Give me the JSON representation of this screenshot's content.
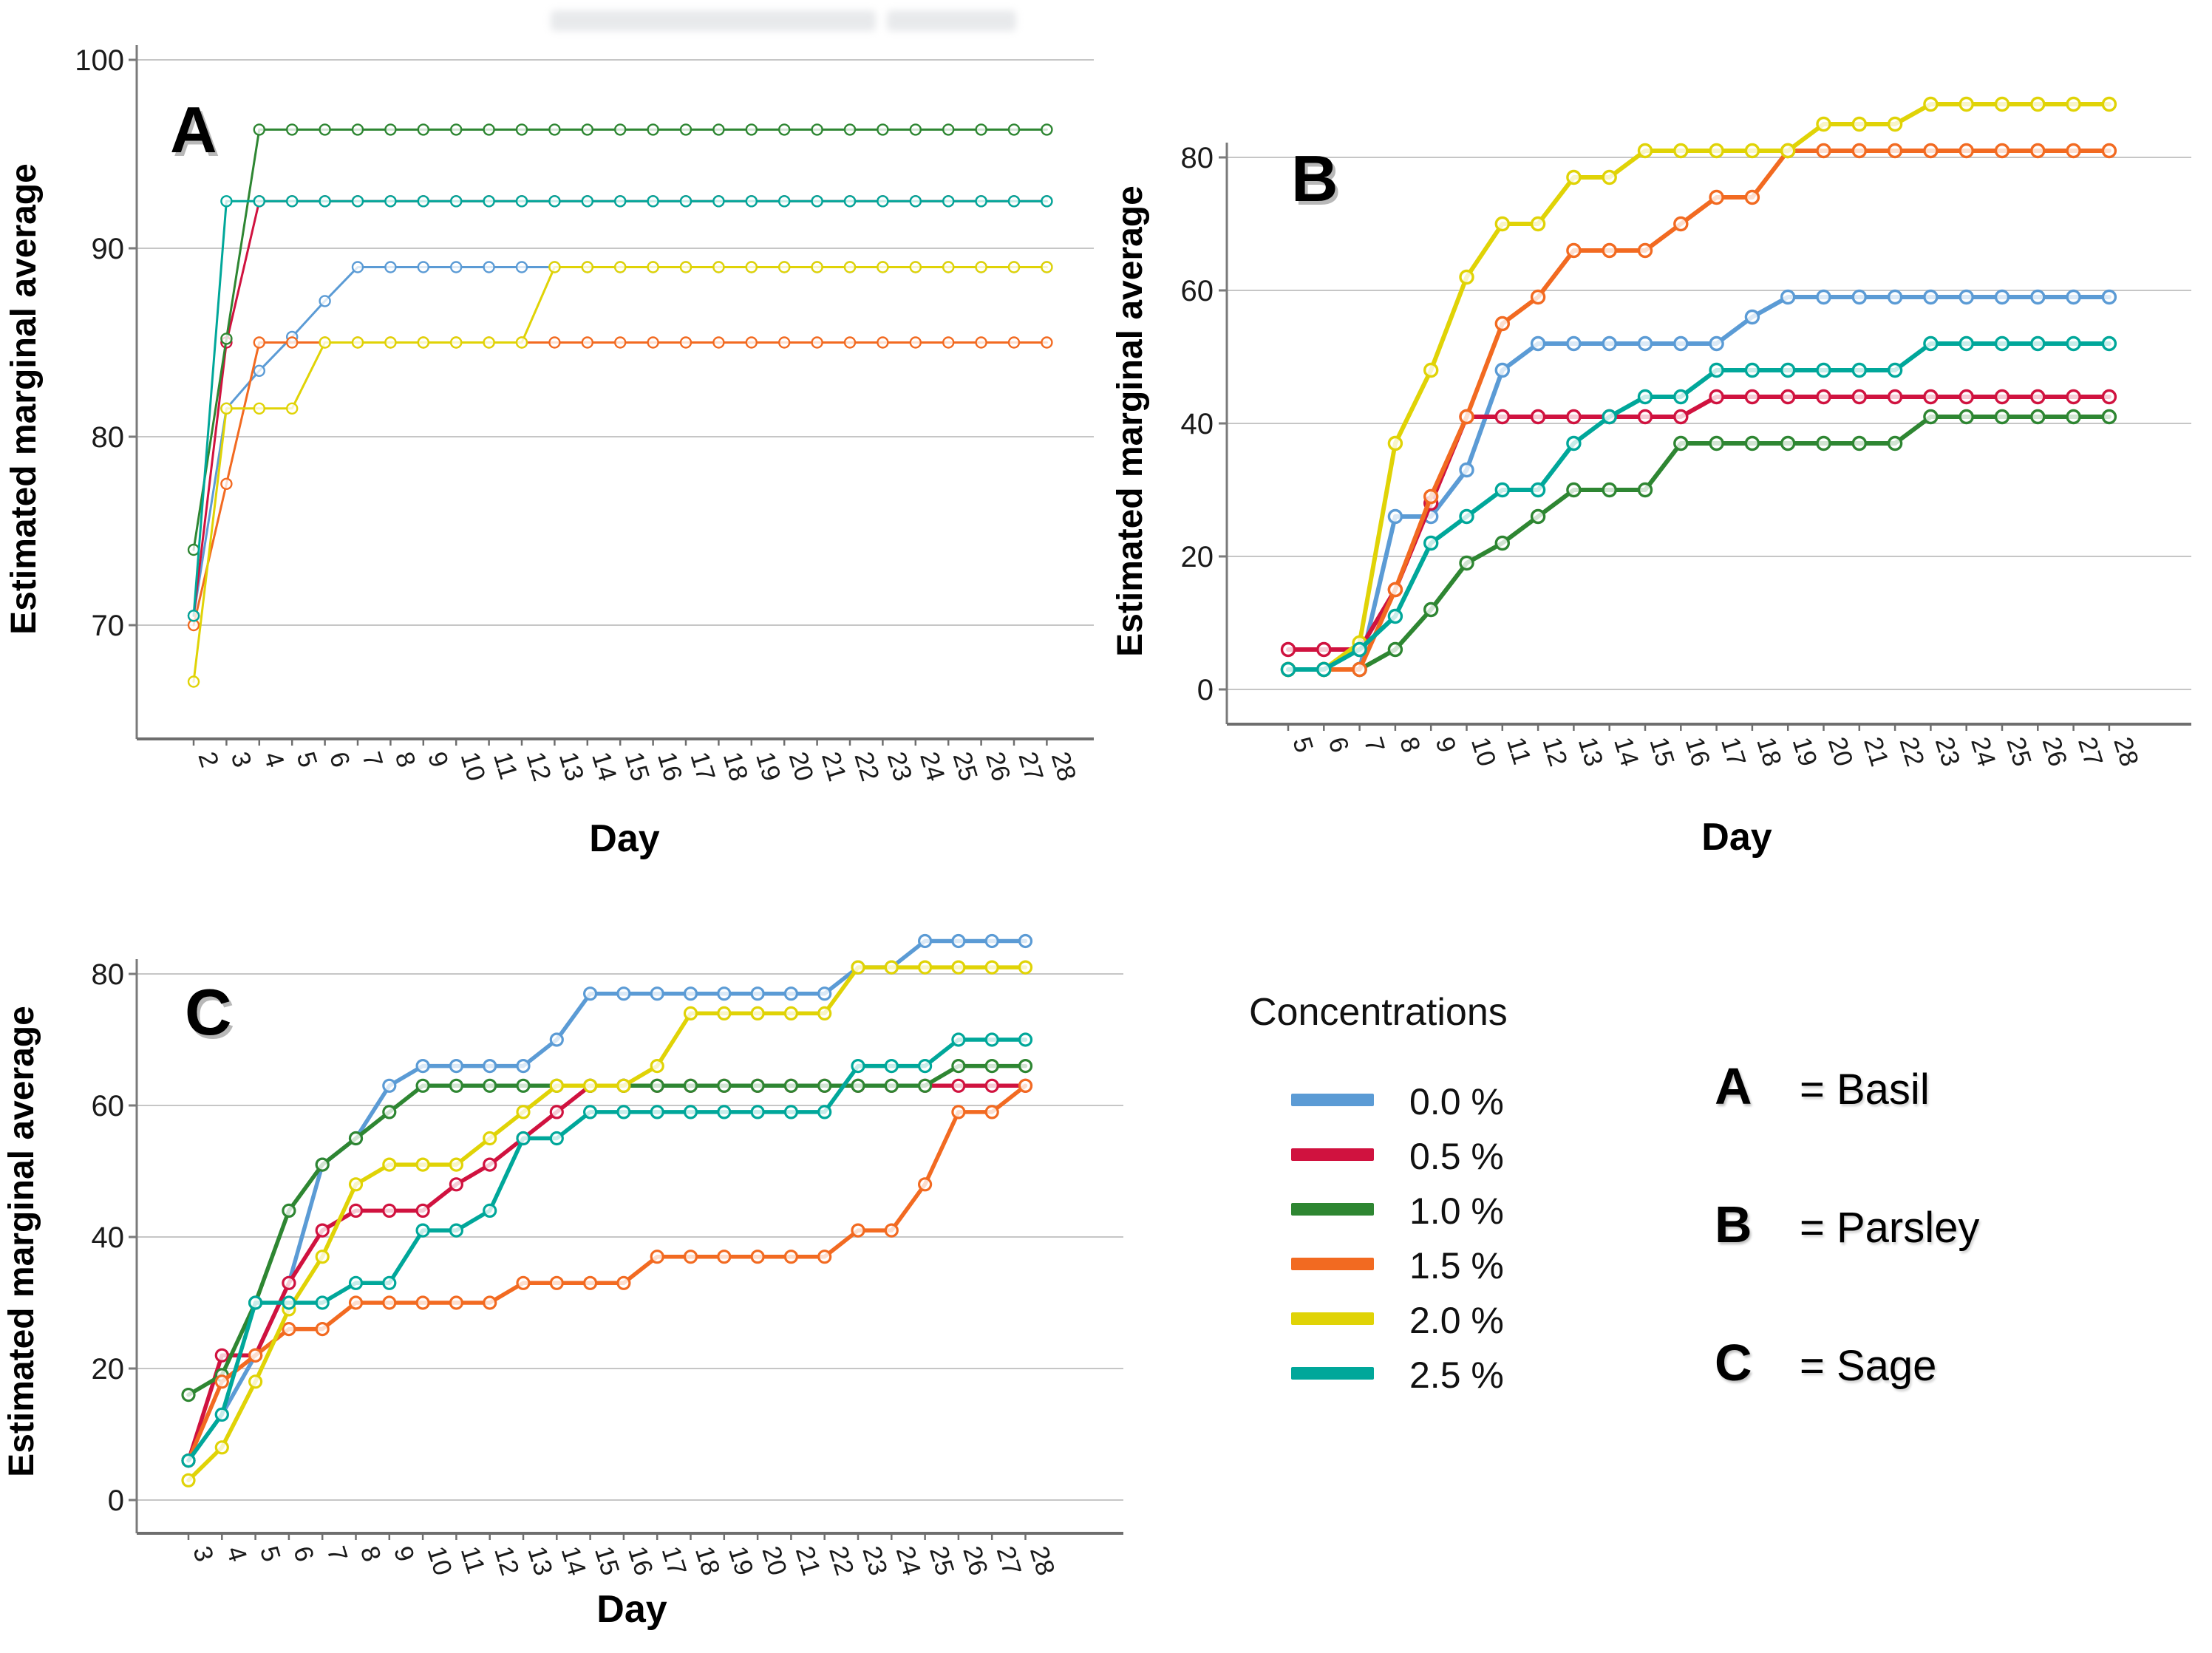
{
  "legend": {
    "title": "Concentrations",
    "items": [
      {
        "label": "0.0 %",
        "color": "#5b9bd5"
      },
      {
        "label": "0.5 %",
        "color": "#d0123f"
      },
      {
        "label": "1.0 %",
        "color": "#2e8632"
      },
      {
        "label": "1.5 %",
        "color": "#f26a21"
      },
      {
        "label": "2.0 %",
        "color": "#e0d306"
      },
      {
        "label": "2.5 %",
        "color": "#00a79a"
      }
    ]
  },
  "key": {
    "items": [
      {
        "letter": "A",
        "label": "= Basil"
      },
      {
        "letter": "B",
        "label": "= Parsley"
      },
      {
        "letter": "C",
        "label": "= Sage"
      }
    ]
  },
  "chart_data": [
    {
      "id": "A",
      "type": "line",
      "panel_label": "A",
      "xlabel": "Day",
      "ylabel": "Estimated marginal average",
      "x": [
        2,
        3,
        4,
        5,
        6,
        7,
        8,
        9,
        10,
        11,
        12,
        13,
        14,
        15,
        16,
        17,
        18,
        19,
        20,
        21,
        22,
        23,
        24,
        25,
        26,
        27,
        28
      ],
      "y_ticks": [
        100,
        90,
        80,
        70
      ],
      "ylim": [
        63.5,
        101.5
      ],
      "grid": true,
      "legend_position": "none",
      "series": [
        {
          "name": "0.0 %",
          "color": "#5b9bd5",
          "values": [
            70.5,
            81.5,
            83.5,
            85.3,
            87.2,
            89,
            89,
            89,
            89,
            89,
            89,
            89,
            89,
            89,
            89,
            89,
            89,
            89,
            89,
            89,
            89,
            89,
            89,
            89,
            89,
            89,
            89
          ]
        },
        {
          "name": "0.5 %",
          "color": "#d0123f",
          "values": [
            70.5,
            85,
            92.5,
            92.5,
            92.5,
            92.5,
            92.5,
            92.5,
            92.5,
            92.5,
            92.5,
            92.5,
            92.5,
            92.5,
            92.5,
            92.5,
            92.5,
            92.5,
            92.5,
            92.5,
            92.5,
            92.5,
            92.5,
            92.5,
            92.5,
            92.5,
            92.5
          ]
        },
        {
          "name": "1.0 %",
          "color": "#2e8632",
          "values": [
            74,
            85.2,
            96.3,
            96.3,
            96.3,
            96.3,
            96.3,
            96.3,
            96.3,
            96.3,
            96.3,
            96.3,
            96.3,
            96.3,
            96.3,
            96.3,
            96.3,
            96.3,
            96.3,
            96.3,
            96.3,
            96.3,
            96.3,
            96.3,
            96.3,
            96.3,
            96.3
          ]
        },
        {
          "name": "1.5 %",
          "color": "#f26a21",
          "values": [
            70,
            77.5,
            85,
            85,
            85,
            85,
            85,
            85,
            85,
            85,
            85,
            85,
            85,
            85,
            85,
            85,
            85,
            85,
            85,
            85,
            85,
            85,
            85,
            85,
            85,
            85,
            85
          ]
        },
        {
          "name": "2.0 %",
          "color": "#e0d306",
          "values": [
            67,
            81.5,
            81.5,
            81.5,
            85,
            85,
            85,
            85,
            85,
            85,
            85,
            89,
            89,
            89,
            89,
            89,
            89,
            89,
            89,
            89,
            89,
            89,
            89,
            89,
            89,
            89,
            89
          ]
        },
        {
          "name": "2.5 %",
          "color": "#00a79a",
          "values": [
            70.5,
            92.5,
            92.5,
            92.5,
            92.5,
            92.5,
            92.5,
            92.5,
            92.5,
            92.5,
            92.5,
            92.5,
            92.5,
            92.5,
            92.5,
            92.5,
            92.5,
            92.5,
            92.5,
            92.5,
            92.5,
            92.5,
            92.5,
            92.5,
            92.5,
            92.5,
            92.5
          ]
        }
      ]
    },
    {
      "id": "B",
      "type": "line",
      "panel_label": "B",
      "xlabel": "Day",
      "ylabel": "Estimated marginal average",
      "x": [
        5,
        6,
        7,
        8,
        9,
        10,
        11,
        12,
        13,
        14,
        15,
        16,
        17,
        18,
        19,
        20,
        21,
        22,
        23,
        24,
        25,
        26,
        27,
        28
      ],
      "y_ticks": [
        80,
        60,
        40,
        20,
        0
      ],
      "ylim": [
        -5,
        93
      ],
      "grid": true,
      "legend_position": "none",
      "series": [
        {
          "name": "0.0 %",
          "color": "#5b9bd5",
          "values": [
            3,
            3,
            3,
            26,
            26,
            33,
            48,
            52,
            52,
            52,
            52,
            52,
            52,
            56,
            59,
            59,
            59,
            59,
            59,
            59,
            59,
            59,
            59,
            59
          ]
        },
        {
          "name": "0.5 %",
          "color": "#d0123f",
          "values": [
            6,
            6,
            6,
            15,
            28,
            41,
            41,
            41,
            41,
            41,
            41,
            41,
            44,
            44,
            44,
            44,
            44,
            44,
            44,
            44,
            44,
            44,
            44,
            44
          ]
        },
        {
          "name": "1.0 %",
          "color": "#2e8632",
          "values": [
            3,
            3,
            3,
            6,
            12,
            19,
            22,
            26,
            30,
            30,
            30,
            37,
            37,
            37,
            37,
            37,
            37,
            37,
            41,
            41,
            41,
            41,
            41,
            41
          ]
        },
        {
          "name": "1.5 %",
          "color": "#f26a21",
          "values": [
            3,
            3,
            3,
            15,
            29,
            41,
            55,
            59,
            66,
            66,
            66,
            70,
            74,
            74,
            81,
            81,
            81,
            81,
            81,
            81,
            81,
            81,
            81,
            81
          ]
        },
        {
          "name": "2.0 %",
          "color": "#e0d306",
          "values": [
            3,
            3,
            7,
            37,
            48,
            62,
            70,
            70,
            77,
            77,
            81,
            81,
            81,
            81,
            81,
            85,
            85,
            85,
            88,
            88,
            88,
            88,
            88,
            88
          ]
        },
        {
          "name": "2.5 %",
          "color": "#00a79a",
          "values": [
            3,
            3,
            6,
            11,
            22,
            26,
            30,
            30,
            37,
            41,
            44,
            44,
            48,
            48,
            48,
            48,
            48,
            48,
            52,
            52,
            52,
            52,
            52,
            52
          ]
        }
      ]
    },
    {
      "id": "C",
      "type": "line",
      "panel_label": "C",
      "xlabel": "Day",
      "ylabel": "Estimated marginal average",
      "x": [
        3,
        4,
        5,
        6,
        7,
        8,
        9,
        10,
        11,
        12,
        13,
        14,
        15,
        16,
        17,
        18,
        19,
        20,
        21,
        22,
        23,
        24,
        25,
        26,
        27,
        28
      ],
      "y_ticks": [
        80,
        60,
        40,
        20,
        0
      ],
      "ylim": [
        -5,
        92
      ],
      "grid": true,
      "legend_position": "none",
      "series": [
        {
          "name": "0.0 %",
          "color": "#5b9bd5",
          "values": [
            6,
            13,
            22,
            33,
            51,
            55,
            63,
            66,
            66,
            66,
            66,
            70,
            77,
            77,
            77,
            77,
            77,
            77,
            77,
            77,
            81,
            81,
            85,
            85,
            85,
            85
          ]
        },
        {
          "name": "0.5 %",
          "color": "#d0123f",
          "values": [
            6,
            22,
            22,
            33,
            41,
            44,
            44,
            44,
            48,
            51,
            55,
            59,
            63,
            63,
            63,
            63,
            63,
            63,
            63,
            63,
            63,
            63,
            63,
            63,
            63,
            63
          ]
        },
        {
          "name": "1.0 %",
          "color": "#2e8632",
          "values": [
            16,
            19,
            30,
            44,
            51,
            55,
            59,
            63,
            63,
            63,
            63,
            63,
            63,
            63,
            63,
            63,
            63,
            63,
            63,
            63,
            63,
            63,
            63,
            66,
            66,
            66
          ]
        },
        {
          "name": "1.5 %",
          "color": "#f26a21",
          "values": [
            6,
            18,
            22,
            26,
            26,
            30,
            30,
            30,
            30,
            30,
            33,
            33,
            33,
            33,
            37,
            37,
            37,
            37,
            37,
            37,
            41,
            41,
            48,
            59,
            59,
            63
          ]
        },
        {
          "name": "2.0 %",
          "color": "#e0d306",
          "values": [
            3,
            8,
            18,
            29,
            37,
            48,
            51,
            51,
            51,
            55,
            59,
            63,
            63,
            63,
            66,
            74,
            74,
            74,
            74,
            74,
            81,
            81,
            81,
            81,
            81,
            81
          ]
        },
        {
          "name": "2.5 %",
          "color": "#00a79a",
          "values": [
            6,
            13,
            30,
            30,
            30,
            33,
            33,
            41,
            41,
            44,
            55,
            55,
            59,
            59,
            59,
            59,
            59,
            59,
            59,
            59,
            66,
            66,
            66,
            70,
            70,
            70
          ]
        }
      ]
    }
  ]
}
